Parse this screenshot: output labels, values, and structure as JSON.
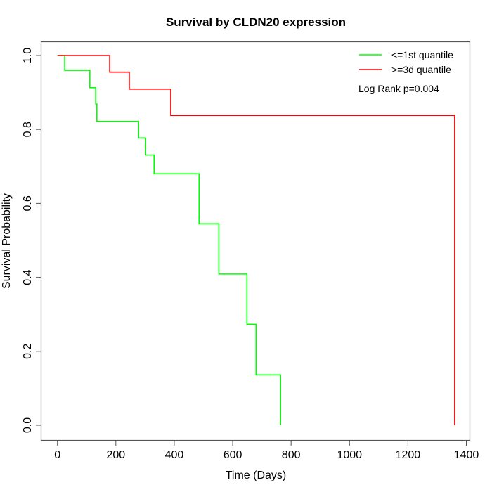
{
  "chart_data": {
    "type": "line",
    "subtype": "kaplan-meier-step",
    "title": "Survival by CLDN20 expression",
    "xlabel": "Time (Days)",
    "ylabel": "Survival Probability",
    "xlim": [
      0,
      1400
    ],
    "ylim": [
      0,
      1.0
    ],
    "xticks": [
      0,
      200,
      400,
      600,
      800,
      1000,
      1200,
      1400
    ],
    "xtick_labels": [
      "0",
      "200",
      "400",
      "600",
      "800",
      "1000",
      "1200",
      "1400"
    ],
    "yticks": [
      0.0,
      0.2,
      0.4,
      0.6,
      0.8,
      1.0
    ],
    "ytick_labels": [
      "0.0",
      "0.2",
      "0.4",
      "0.6",
      "0.8",
      "1.0"
    ],
    "grid": false,
    "legend_position": "top-right",
    "annotation": "Log Rank p=0.004",
    "series": [
      {
        "name": "<=1st quantile",
        "color": "#00ff00",
        "steps": [
          {
            "x": 0,
            "y": 1.0
          },
          {
            "x": 25,
            "y": 0.96
          },
          {
            "x": 111,
            "y": 0.913
          },
          {
            "x": 131,
            "y": 0.869
          },
          {
            "x": 135,
            "y": 0.822
          },
          {
            "x": 278,
            "y": 0.777
          },
          {
            "x": 302,
            "y": 0.731
          },
          {
            "x": 331,
            "y": 0.68
          },
          {
            "x": 485,
            "y": 0.545
          },
          {
            "x": 553,
            "y": 0.409
          },
          {
            "x": 649,
            "y": 0.273
          },
          {
            "x": 680,
            "y": 0.136
          },
          {
            "x": 764,
            "y": 0.0
          }
        ]
      },
      {
        "name": ">=3d quantile",
        "color": "#ff0000",
        "steps": [
          {
            "x": 0,
            "y": 1.0
          },
          {
            "x": 179,
            "y": 0.955
          },
          {
            "x": 246,
            "y": 0.909
          },
          {
            "x": 388,
            "y": 0.838
          },
          {
            "x": 1360,
            "y": 0.0
          }
        ]
      }
    ]
  }
}
